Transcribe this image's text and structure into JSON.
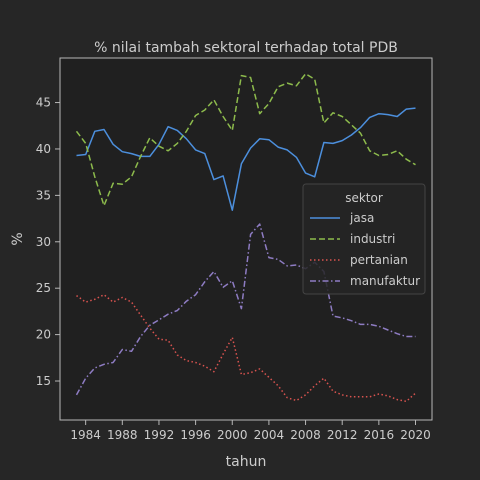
{
  "chart_data": {
    "type": "line",
    "title": "% nilai tambah sektoral terhadap total PDB",
    "xlabel": "tahun",
    "ylabel": "%",
    "xlim": [
      1981.2,
      2021.8
    ],
    "ylim": [
      10.8,
      49.8
    ],
    "xticks": [
      1984,
      1988,
      1992,
      1996,
      2000,
      2004,
      2008,
      2012,
      2016,
      2020
    ],
    "yticks": [
      15,
      20,
      25,
      30,
      35,
      40,
      45
    ],
    "grid": false,
    "legend": {
      "title": "sektor",
      "placement": "center-right"
    },
    "x": [
      1983,
      1984,
      1985,
      1986,
      1987,
      1988,
      1989,
      1990,
      1991,
      1992,
      1993,
      1994,
      1995,
      1996,
      1997,
      1998,
      1999,
      2000,
      2001,
      2002,
      2003,
      2004,
      2005,
      2006,
      2007,
      2008,
      2009,
      2010,
      2011,
      2012,
      2013,
      2014,
      2015,
      2016,
      2017,
      2018,
      2019,
      2020
    ],
    "series": [
      {
        "name": "jasa",
        "color": "#4c8fdd",
        "dash": "solid",
        "values": [
          39.3,
          39.4,
          41.9,
          42.1,
          40.5,
          39.7,
          39.5,
          39.2,
          39.2,
          40.5,
          42.4,
          42.0,
          41.1,
          39.9,
          39.5,
          36.7,
          37.1,
          33.4,
          38.4,
          40.1,
          41.1,
          41.0,
          40.2,
          39.9,
          39.1,
          37.4,
          37.0,
          40.7,
          40.6,
          40.9,
          41.5,
          42.3,
          43.4,
          43.8,
          43.7,
          43.5,
          44.3,
          44.4
        ]
      },
      {
        "name": "industri",
        "color": "#8dbb4c",
        "dash": "dashed",
        "values": [
          41.9,
          40.6,
          37.0,
          33.9,
          36.3,
          36.2,
          37.0,
          39.2,
          41.2,
          40.3,
          39.8,
          40.6,
          41.9,
          43.6,
          44.2,
          45.3,
          43.5,
          42.0,
          47.9,
          47.7,
          43.8,
          44.9,
          46.7,
          47.1,
          46.8,
          48.1,
          47.5,
          42.8,
          43.9,
          43.5,
          42.6,
          41.7,
          39.8,
          39.3,
          39.4,
          39.8,
          38.9,
          38.3
        ]
      },
      {
        "name": "pertanian",
        "color": "#d9534f",
        "dash": "dotted",
        "values": [
          24.2,
          23.5,
          23.8,
          24.3,
          23.5,
          24.0,
          23.5,
          22.1,
          20.7,
          19.5,
          19.4,
          17.8,
          17.2,
          17.0,
          16.6,
          16.0,
          17.9,
          19.7,
          15.7,
          15.9,
          16.3,
          15.4,
          14.5,
          13.2,
          12.9,
          13.5,
          14.5,
          15.3,
          13.9,
          13.5,
          13.3,
          13.3,
          13.3,
          13.6,
          13.4,
          13.0,
          12.8,
          13.7
        ]
      },
      {
        "name": "manufaktur",
        "color": "#8e7cc3",
        "dash": "dashdot",
        "values": [
          13.5,
          15.3,
          16.4,
          16.8,
          17.0,
          18.4,
          18.2,
          19.8,
          21.0,
          21.6,
          22.2,
          22.6,
          23.6,
          24.3,
          25.7,
          26.8,
          25.1,
          25.8,
          22.8,
          30.8,
          31.9,
          28.3,
          28.1,
          27.4,
          27.5,
          27.1,
          27.8,
          26.8,
          22.0,
          21.8,
          21.5,
          21.1,
          21.1,
          20.9,
          20.5,
          20.1,
          19.8,
          19.8
        ]
      }
    ]
  }
}
